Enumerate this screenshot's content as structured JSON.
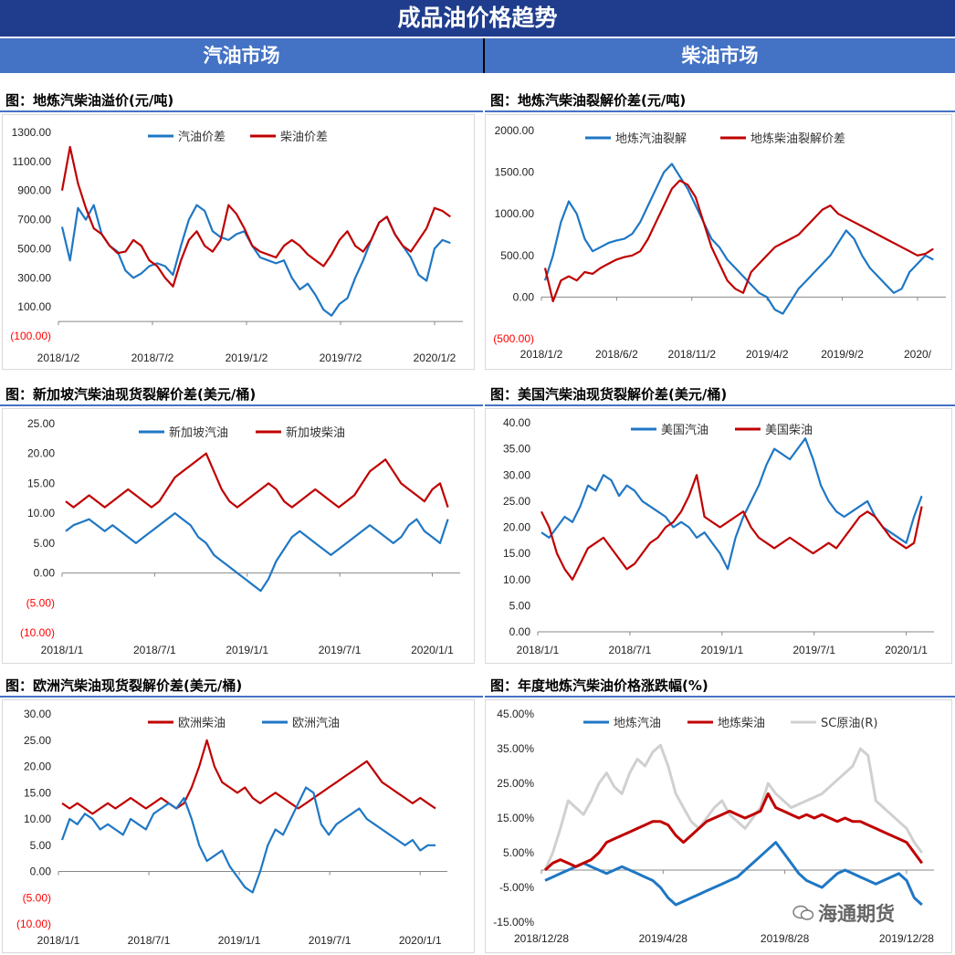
{
  "banner": {
    "title": "成品油价格趋势"
  },
  "sections": {
    "gasoline": "汽油市场",
    "diesel": "柴油市场"
  },
  "watermark": "海通期货",
  "colors": {
    "blue": "#1f77c4",
    "red": "#c00000",
    "gray": "#d0d0d0",
    "neg": "#ff0000"
  },
  "panels": [
    {
      "id": "p1",
      "title": "图：地炼汽柴油溢价(元/吨)"
    },
    {
      "id": "p2",
      "title": "图：地炼汽柴油裂解价差(元/吨)"
    },
    {
      "id": "p3",
      "title": "图：新加坡汽柴油现货裂解价差(美元/桶)"
    },
    {
      "id": "p4",
      "title": "图：美国汽柴油现货裂解价差(美元/桶)"
    },
    {
      "id": "p5",
      "title": "图：欧洲汽柴油现货裂解价差(美元/桶)"
    },
    {
      "id": "p6",
      "title": "图：年度地炼汽柴油价格涨跌幅(%)"
    }
  ],
  "chart_data": [
    {
      "id": "p1",
      "type": "line",
      "y_ticks": [
        "1300.00",
        "1100.00",
        "900.00",
        "700.00",
        "500.00",
        "300.00",
        "100.00",
        "(100.00)"
      ],
      "ylim": [
        -100,
        1300
      ],
      "x_ticks": [
        "2018/1/2",
        "2018/7/2",
        "2019/1/2",
        "2019/7/2",
        "2020/1/2"
      ],
      "series": [
        {
          "name": "汽油价差",
          "color": "blue",
          "values": [
            650,
            420,
            780,
            700,
            800,
            600,
            520,
            480,
            350,
            300,
            330,
            380,
            400,
            380,
            320,
            520,
            700,
            800,
            760,
            620,
            580,
            560,
            600,
            620,
            520,
            440,
            420,
            400,
            420,
            300,
            220,
            260,
            180,
            80,
            40,
            120,
            160,
            300,
            420,
            560,
            680,
            720,
            600,
            520,
            440,
            320,
            280,
            500,
            560,
            540
          ]
        },
        {
          "name": "柴油价差",
          "color": "red",
          "values": [
            900,
            1200,
            950,
            780,
            640,
            600,
            520,
            470,
            480,
            560,
            520,
            420,
            380,
            300,
            240,
            420,
            560,
            620,
            520,
            480,
            560,
            800,
            740,
            640,
            520,
            480,
            460,
            440,
            520,
            560,
            520,
            460,
            420,
            380,
            460,
            560,
            620,
            520,
            480,
            560,
            680,
            720,
            600,
            520,
            480,
            560,
            640,
            780,
            760,
            720
          ]
        }
      ]
    },
    {
      "id": "p2",
      "type": "line",
      "y_ticks": [
        "2000.00",
        "1500.00",
        "1000.00",
        "500.00",
        "0.00",
        "(500.00)"
      ],
      "ylim": [
        -500,
        2000
      ],
      "x_ticks": [
        "2018/1/2",
        "2018/6/2",
        "2018/11/2",
        "2019/4/2",
        "2019/9/2",
        "2020/"
      ],
      "series": [
        {
          "name": "地炼汽油裂解",
          "color": "blue",
          "values": [
            200,
            500,
            900,
            1150,
            1000,
            700,
            550,
            600,
            650,
            680,
            700,
            760,
            900,
            1100,
            1300,
            1500,
            1600,
            1450,
            1300,
            1100,
            900,
            700,
            600,
            450,
            350,
            250,
            150,
            50,
            0,
            -150,
            -200,
            -50,
            100,
            200,
            300,
            400,
            500,
            650,
            800,
            700,
            500,
            350,
            250,
            150,
            50,
            100,
            300,
            400,
            500,
            450
          ]
        },
        {
          "name": "地炼柴油裂解价差",
          "color": "red",
          "values": [
            350,
            -50,
            200,
            250,
            200,
            300,
            280,
            350,
            400,
            450,
            480,
            500,
            550,
            700,
            900,
            1100,
            1300,
            1400,
            1350,
            1200,
            900,
            600,
            400,
            200,
            100,
            50,
            300,
            400,
            500,
            600,
            650,
            700,
            750,
            850,
            950,
            1050,
            1100,
            1000,
            950,
            900,
            850,
            800,
            750,
            700,
            650,
            600,
            550,
            500,
            520,
            580
          ]
        }
      ]
    },
    {
      "id": "p3",
      "type": "line",
      "y_ticks": [
        "25.00",
        "20.00",
        "15.00",
        "10.00",
        "5.00",
        "0.00",
        "(5.00)",
        "(10.00)"
      ],
      "ylim": [
        -10,
        25
      ],
      "x_ticks": [
        "2018/1/1",
        "2018/7/1",
        "2019/1/1",
        "2019/7/1",
        "2020/1/1"
      ],
      "series": [
        {
          "name": "新加坡汽油",
          "color": "blue",
          "values": [
            7,
            8,
            8.5,
            9,
            8,
            7,
            8,
            7,
            6,
            5,
            6,
            7,
            8,
            9,
            10,
            9,
            8,
            6,
            5,
            3,
            2,
            1,
            0,
            -1,
            -2,
            -3,
            -1,
            2,
            4,
            6,
            7,
            6,
            5,
            4,
            3,
            4,
            5,
            6,
            7,
            8,
            7,
            6,
            5,
            6,
            8,
            9,
            7,
            6,
            5,
            9
          ]
        },
        {
          "name": "新加坡柴油",
          "color": "red",
          "values": [
            12,
            11,
            12,
            13,
            12,
            11,
            12,
            13,
            14,
            13,
            12,
            11,
            12,
            14,
            16,
            17,
            18,
            19,
            20,
            17,
            14,
            12,
            11,
            12,
            13,
            14,
            15,
            14,
            12,
            11,
            12,
            13,
            14,
            13,
            12,
            11,
            12,
            13,
            15,
            17,
            18,
            19,
            17,
            15,
            14,
            13,
            12,
            14,
            15,
            11
          ]
        }
      ]
    },
    {
      "id": "p4",
      "type": "line",
      "y_ticks": [
        "40.00",
        "35.00",
        "30.00",
        "25.00",
        "20.00",
        "15.00",
        "10.00",
        "5.00",
        "0.00"
      ],
      "ylim": [
        0,
        40
      ],
      "x_ticks": [
        "2018/1/1",
        "2018/7/1",
        "2019/1/1",
        "2019/7/1",
        "2020/1/1"
      ],
      "series": [
        {
          "name": "美国汽油",
          "color": "blue",
          "values": [
            19,
            18,
            20,
            22,
            21,
            24,
            28,
            27,
            30,
            29,
            26,
            28,
            27,
            25,
            24,
            23,
            22,
            20,
            21,
            20,
            18,
            19,
            17,
            15,
            12,
            18,
            22,
            25,
            28,
            32,
            35,
            34,
            33,
            35,
            37,
            33,
            28,
            25,
            23,
            22,
            23,
            24,
            25,
            22,
            20,
            19,
            18,
            17,
            22,
            26
          ]
        },
        {
          "name": "美国柴油",
          "color": "red",
          "values": [
            23,
            20,
            15,
            12,
            10,
            13,
            16,
            17,
            18,
            16,
            14,
            12,
            13,
            15,
            17,
            18,
            20,
            21,
            23,
            26,
            30,
            22,
            21,
            20,
            21,
            22,
            23,
            20,
            18,
            17,
            16,
            17,
            18,
            17,
            16,
            15,
            16,
            17,
            16,
            18,
            20,
            22,
            23,
            22,
            20,
            18,
            17,
            16,
            17,
            24
          ]
        }
      ]
    },
    {
      "id": "p5",
      "type": "line",
      "y_ticks": [
        "30.00",
        "25.00",
        "20.00",
        "15.00",
        "10.00",
        "5.00",
        "0.00",
        "(5.00)",
        "(10.00)"
      ],
      "ylim": [
        -10,
        30
      ],
      "x_ticks": [
        "2018/1/1",
        "2018/7/1",
        "2019/1/1",
        "2019/7/1",
        "2020/1/1"
      ],
      "series": [
        {
          "name": "欧洲柴油",
          "color": "red",
          "values": [
            13,
            12,
            13,
            12,
            11,
            12,
            13,
            12,
            13,
            14,
            13,
            12,
            13,
            14,
            13,
            12,
            13,
            16,
            20,
            25,
            20,
            17,
            16,
            15,
            16,
            14,
            13,
            14,
            15,
            14,
            13,
            12,
            13,
            14,
            15,
            16,
            17,
            18,
            19,
            20,
            21,
            19,
            17,
            16,
            15,
            14,
            13,
            14,
            13,
            12
          ]
        },
        {
          "name": "欧洲汽油",
          "color": "blue",
          "values": [
            6,
            10,
            9,
            11,
            10,
            8,
            9,
            8,
            7,
            10,
            9,
            8,
            11,
            12,
            13,
            12,
            14,
            10,
            5,
            2,
            3,
            4,
            1,
            -1,
            -3,
            -4,
            0,
            5,
            8,
            7,
            10,
            13,
            16,
            15,
            9,
            7,
            9,
            10,
            11,
            12,
            10,
            9,
            8,
            7,
            6,
            5,
            6,
            4,
            5,
            5
          ]
        }
      ]
    },
    {
      "id": "p6",
      "type": "line",
      "y_ticks": [
        "45.00%",
        "35.00%",
        "25.00%",
        "15.00%",
        "5.00%",
        "-5.00%",
        "-15.00%"
      ],
      "ylim": [
        -15,
        45
      ],
      "x_ticks": [
        "2018/12/28",
        "2019/4/28",
        "2019/8/28",
        "2019/12/28"
      ],
      "series": [
        {
          "name": "地炼汽油",
          "color": "blue",
          "values": [
            -3,
            -2,
            -1,
            0,
            1,
            2,
            1,
            0,
            -1,
            0,
            1,
            0,
            -1,
            -2,
            -3,
            -5,
            -8,
            -10,
            -9,
            -8,
            -7,
            -6,
            -5,
            -4,
            -3,
            -2,
            0,
            2,
            4,
            6,
            8,
            5,
            2,
            -1,
            -3,
            -4,
            -5,
            -3,
            -1,
            0,
            -1,
            -2,
            -3,
            -4,
            -3,
            -2,
            -1,
            -3,
            -8,
            -10
          ]
        },
        {
          "name": "地炼柴油",
          "color": "red",
          "values": [
            0,
            2,
            3,
            2,
            1,
            2,
            3,
            5,
            8,
            9,
            10,
            11,
            12,
            13,
            14,
            14,
            13,
            10,
            8,
            10,
            12,
            14,
            15,
            16,
            17,
            16,
            15,
            16,
            17,
            22,
            18,
            17,
            16,
            15,
            16,
            15,
            16,
            15,
            14,
            15,
            14,
            14,
            13,
            12,
            11,
            10,
            9,
            8,
            5,
            2
          ]
        },
        {
          "name": "SC原油(R)",
          "color": "gray",
          "values": [
            0,
            5,
            12,
            20,
            18,
            16,
            20,
            25,
            28,
            24,
            22,
            28,
            32,
            30,
            34,
            36,
            30,
            22,
            18,
            14,
            12,
            15,
            18,
            20,
            16,
            14,
            12,
            15,
            18,
            25,
            22,
            20,
            18,
            19,
            20,
            21,
            22,
            24,
            26,
            28,
            30,
            35,
            33,
            20,
            18,
            16,
            14,
            12,
            8,
            5
          ]
        }
      ]
    }
  ]
}
